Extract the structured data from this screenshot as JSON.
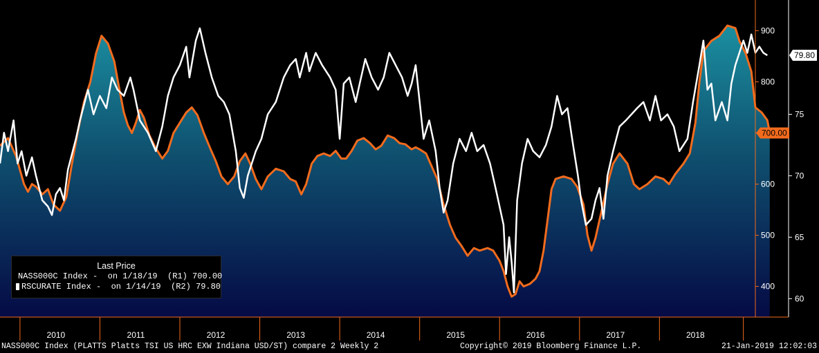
{
  "chart_data": {
    "type": "area",
    "x_labels": [
      "2010",
      "2011",
      "2012",
      "2013",
      "2014",
      "2015",
      "2016",
      "2017",
      "2018"
    ],
    "xlim": [
      2009.75,
      2019.2
    ],
    "series": [
      {
        "name": "NASS000C Index",
        "axis": "right1",
        "render": "area",
        "color": "#f26b1d",
        "last_value_label": "700.00",
        "points": [
          [
            2009.75,
            675
          ],
          [
            2009.85,
            690
          ],
          [
            2009.95,
            655
          ],
          [
            2010.05,
            600
          ],
          [
            2010.1,
            585
          ],
          [
            2010.15,
            600
          ],
          [
            2010.2,
            595
          ],
          [
            2010.28,
            580
          ],
          [
            2010.35,
            590
          ],
          [
            2010.42,
            560
          ],
          [
            2010.5,
            548
          ],
          [
            2010.58,
            575
          ],
          [
            2010.65,
            640
          ],
          [
            2010.72,
            700
          ],
          [
            2010.8,
            760
          ],
          [
            2010.88,
            800
          ],
          [
            2010.95,
            855
          ],
          [
            2011.02,
            890
          ],
          [
            2011.1,
            875
          ],
          [
            2011.18,
            840
          ],
          [
            2011.25,
            780
          ],
          [
            2011.3,
            740
          ],
          [
            2011.35,
            715
          ],
          [
            2011.4,
            700
          ],
          [
            2011.45,
            720
          ],
          [
            2011.5,
            745
          ],
          [
            2011.55,
            730
          ],
          [
            2011.62,
            695
          ],
          [
            2011.7,
            670
          ],
          [
            2011.78,
            650
          ],
          [
            2011.85,
            665
          ],
          [
            2011.92,
            700
          ],
          [
            2012.0,
            720
          ],
          [
            2012.08,
            740
          ],
          [
            2012.15,
            750
          ],
          [
            2012.22,
            735
          ],
          [
            2012.3,
            700
          ],
          [
            2012.38,
            670
          ],
          [
            2012.45,
            645
          ],
          [
            2012.52,
            615
          ],
          [
            2012.6,
            600
          ],
          [
            2012.68,
            615
          ],
          [
            2012.75,
            645
          ],
          [
            2012.82,
            660
          ],
          [
            2012.88,
            640
          ],
          [
            2012.95,
            610
          ],
          [
            2013.02,
            590
          ],
          [
            2013.1,
            615
          ],
          [
            2013.2,
            630
          ],
          [
            2013.3,
            625
          ],
          [
            2013.38,
            610
          ],
          [
            2013.45,
            605
          ],
          [
            2013.52,
            580
          ],
          [
            2013.58,
            600
          ],
          [
            2013.65,
            640
          ],
          [
            2013.72,
            655
          ],
          [
            2013.8,
            660
          ],
          [
            2013.88,
            655
          ],
          [
            2013.95,
            665
          ],
          [
            2014.02,
            650
          ],
          [
            2014.08,
            650
          ],
          [
            2014.15,
            665
          ],
          [
            2014.22,
            685
          ],
          [
            2014.3,
            690
          ],
          [
            2014.38,
            680
          ],
          [
            2014.45,
            668
          ],
          [
            2014.52,
            675
          ],
          [
            2014.6,
            695
          ],
          [
            2014.68,
            690
          ],
          [
            2014.75,
            680
          ],
          [
            2014.82,
            678
          ],
          [
            2014.9,
            668
          ],
          [
            2014.95,
            672
          ],
          [
            2015.0,
            668
          ],
          [
            2015.08,
            660
          ],
          [
            2015.15,
            635
          ],
          [
            2015.22,
            610
          ],
          [
            2015.3,
            560
          ],
          [
            2015.38,
            520
          ],
          [
            2015.45,
            495
          ],
          [
            2015.52,
            480
          ],
          [
            2015.6,
            460
          ],
          [
            2015.68,
            475
          ],
          [
            2015.75,
            470
          ],
          [
            2015.85,
            475
          ],
          [
            2015.92,
            470
          ],
          [
            2016.0,
            450
          ],
          [
            2016.05,
            430
          ],
          [
            2016.1,
            400
          ],
          [
            2016.15,
            380
          ],
          [
            2016.2,
            385
          ],
          [
            2016.25,
            410
          ],
          [
            2016.3,
            400
          ],
          [
            2016.38,
            405
          ],
          [
            2016.45,
            415
          ],
          [
            2016.5,
            430
          ],
          [
            2016.55,
            470
          ],
          [
            2016.6,
            530
          ],
          [
            2016.65,
            590
          ],
          [
            2016.7,
            610
          ],
          [
            2016.8,
            615
          ],
          [
            2016.9,
            610
          ],
          [
            2016.97,
            595
          ],
          [
            2017.05,
            560
          ],
          [
            2017.1,
            500
          ],
          [
            2017.15,
            470
          ],
          [
            2017.2,
            495
          ],
          [
            2017.28,
            550
          ],
          [
            2017.35,
            600
          ],
          [
            2017.42,
            640
          ],
          [
            2017.5,
            660
          ],
          [
            2017.6,
            640
          ],
          [
            2017.68,
            600
          ],
          [
            2017.75,
            590
          ],
          [
            2017.85,
            600
          ],
          [
            2017.95,
            615
          ],
          [
            2018.05,
            610
          ],
          [
            2018.12,
            600
          ],
          [
            2018.2,
            620
          ],
          [
            2018.3,
            640
          ],
          [
            2018.38,
            660
          ],
          [
            2018.45,
            720
          ],
          [
            2018.5,
            800
          ],
          [
            2018.55,
            860
          ],
          [
            2018.65,
            880
          ],
          [
            2018.75,
            890
          ],
          [
            2018.85,
            910
          ],
          [
            2018.95,
            905
          ],
          [
            2019.0,
            880
          ],
          [
            2019.08,
            855
          ],
          [
            2019.15,
            820
          ],
          [
            2019.2,
            750
          ],
          [
            2019.28,
            740
          ],
          [
            2019.35,
            725
          ],
          [
            2019.38,
            700
          ]
        ]
      },
      {
        "name": "RSCURATE Index",
        "axis": "right2",
        "render": "line",
        "color": "#ffffff",
        "last_value_label": "79.80",
        "points": [
          [
            2009.75,
            71
          ],
          [
            2009.8,
            73.5
          ],
          [
            2009.85,
            72
          ],
          [
            2009.92,
            74.5
          ],
          [
            2009.97,
            71
          ],
          [
            2010.02,
            72
          ],
          [
            2010.08,
            70
          ],
          [
            2010.15,
            71.5
          ],
          [
            2010.2,
            70
          ],
          [
            2010.28,
            68
          ],
          [
            2010.35,
            67.5
          ],
          [
            2010.4,
            66.8
          ],
          [
            2010.45,
            68.5
          ],
          [
            2010.5,
            69
          ],
          [
            2010.55,
            68
          ],
          [
            2010.6,
            70.5
          ],
          [
            2010.7,
            73
          ],
          [
            2010.75,
            74.5
          ],
          [
            2010.85,
            77
          ],
          [
            2010.92,
            75
          ],
          [
            2011.0,
            76.5
          ],
          [
            2011.08,
            75.5
          ],
          [
            2011.15,
            78
          ],
          [
            2011.22,
            77
          ],
          [
            2011.3,
            76.5
          ],
          [
            2011.38,
            78
          ],
          [
            2011.42,
            77
          ],
          [
            2011.5,
            74.5
          ],
          [
            2011.6,
            73.5
          ],
          [
            2011.7,
            72
          ],
          [
            2011.78,
            74
          ],
          [
            2011.85,
            76.5
          ],
          [
            2011.92,
            78
          ],
          [
            2012.0,
            79
          ],
          [
            2012.08,
            80.5
          ],
          [
            2012.12,
            78
          ],
          [
            2012.2,
            81
          ],
          [
            2012.25,
            82
          ],
          [
            2012.32,
            80
          ],
          [
            2012.4,
            78
          ],
          [
            2012.48,
            76.5
          ],
          [
            2012.55,
            76
          ],
          [
            2012.62,
            75
          ],
          [
            2012.7,
            72
          ],
          [
            2012.75,
            69
          ],
          [
            2012.8,
            68.2
          ],
          [
            2012.85,
            70
          ],
          [
            2012.95,
            72
          ],
          [
            2013.02,
            73
          ],
          [
            2013.1,
            75
          ],
          [
            2013.2,
            76
          ],
          [
            2013.3,
            78
          ],
          [
            2013.38,
            79
          ],
          [
            2013.45,
            79.5
          ],
          [
            2013.5,
            78
          ],
          [
            2013.58,
            80
          ],
          [
            2013.62,
            78.5
          ],
          [
            2013.7,
            80
          ],
          [
            2013.78,
            79
          ],
          [
            2013.88,
            78
          ],
          [
            2013.95,
            77
          ],
          [
            2014.0,
            73
          ],
          [
            2014.05,
            77.5
          ],
          [
            2014.12,
            78
          ],
          [
            2014.2,
            76
          ],
          [
            2014.25,
            77.5
          ],
          [
            2014.32,
            79.5
          ],
          [
            2014.4,
            78
          ],
          [
            2014.48,
            77
          ],
          [
            2014.55,
            78
          ],
          [
            2014.62,
            80
          ],
          [
            2014.7,
            79
          ],
          [
            2014.78,
            78
          ],
          [
            2014.85,
            76.5
          ],
          [
            2014.9,
            77.5
          ],
          [
            2014.95,
            79
          ],
          [
            2015.0,
            76
          ],
          [
            2015.05,
            73
          ],
          [
            2015.12,
            74.5
          ],
          [
            2015.2,
            72
          ],
          [
            2015.25,
            69
          ],
          [
            2015.3,
            67
          ],
          [
            2015.35,
            68
          ],
          [
            2015.42,
            71
          ],
          [
            2015.5,
            73
          ],
          [
            2015.58,
            72
          ],
          [
            2015.65,
            73.5
          ],
          [
            2015.72,
            72
          ],
          [
            2015.8,
            72.5
          ],
          [
            2015.88,
            71
          ],
          [
            2015.95,
            69
          ],
          [
            2016.0,
            67.5
          ],
          [
            2016.05,
            66
          ],
          [
            2016.08,
            62
          ],
          [
            2016.12,
            65
          ],
          [
            2016.15,
            63
          ],
          [
            2016.18,
            60.5
          ],
          [
            2016.22,
            68
          ],
          [
            2016.28,
            71
          ],
          [
            2016.35,
            73
          ],
          [
            2016.42,
            72
          ],
          [
            2016.5,
            71.5
          ],
          [
            2016.58,
            72.5
          ],
          [
            2016.65,
            74
          ],
          [
            2016.72,
            76.5
          ],
          [
            2016.78,
            75
          ],
          [
            2016.85,
            75.5
          ],
          [
            2016.92,
            72.5
          ],
          [
            2016.98,
            70
          ],
          [
            2017.02,
            68
          ],
          [
            2017.08,
            66
          ],
          [
            2017.15,
            66.5
          ],
          [
            2017.2,
            68
          ],
          [
            2017.25,
            69
          ],
          [
            2017.3,
            66.5
          ],
          [
            2017.35,
            70
          ],
          [
            2017.42,
            72
          ],
          [
            2017.5,
            74
          ],
          [
            2017.58,
            74.5
          ],
          [
            2017.65,
            75
          ],
          [
            2017.72,
            75.5
          ],
          [
            2017.8,
            76
          ],
          [
            2017.88,
            74.5
          ],
          [
            2017.95,
            76.5
          ],
          [
            2018.02,
            74.5
          ],
          [
            2018.1,
            75
          ],
          [
            2018.18,
            74
          ],
          [
            2018.25,
            72
          ],
          [
            2018.3,
            72.5
          ],
          [
            2018.35,
            73
          ],
          [
            2018.42,
            76
          ],
          [
            2018.5,
            79
          ],
          [
            2018.55,
            81
          ],
          [
            2018.6,
            77
          ],
          [
            2018.65,
            77.5
          ],
          [
            2018.7,
            74.5
          ],
          [
            2018.78,
            76
          ],
          [
            2018.85,
            74.5
          ],
          [
            2018.9,
            77.5
          ],
          [
            2018.95,
            79
          ],
          [
            2019.0,
            80
          ],
          [
            2019.05,
            81
          ],
          [
            2019.1,
            80
          ],
          [
            2019.15,
            81.5
          ],
          [
            2019.2,
            80
          ],
          [
            2019.25,
            80.5
          ],
          [
            2019.3,
            80
          ],
          [
            2019.35,
            79.8
          ]
        ]
      }
    ],
    "axis_right1": {
      "ticks": [
        400,
        500,
        600,
        700,
        800,
        900
      ],
      "ylim": [
        340,
        960
      ]
    },
    "axis_right2": {
      "ticks": [
        60,
        65,
        70,
        75
      ],
      "ylim": [
        58.5,
        84.3
      ]
    },
    "legend": {
      "title": "Last Price",
      "entries": [
        "NASS000C Index -  on 1/18/19  (R1) 700.00",
        "RSCURATE Index -  on 1/14/19  (R2) 79.80"
      ],
      "placement": "bottom-left"
    },
    "grid": false
  },
  "footer": {
    "left": "NASS000C Index (PLATTS Platts TSI US HRC EXW Indiana USD/ST) compare 2  Weekly 2",
    "center": "Copyright© 2019 Bloomberg Finance L.P.",
    "right": "21-Jan-2019 12:02:03"
  }
}
